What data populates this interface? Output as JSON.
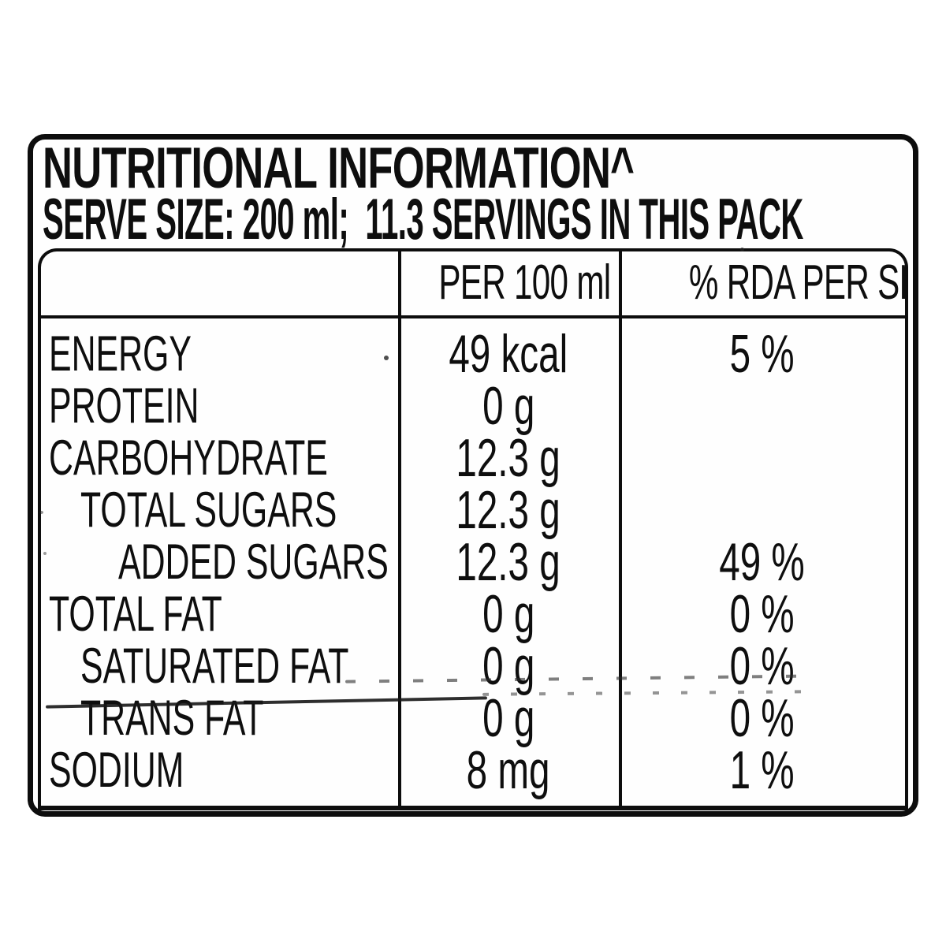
{
  "label": {
    "title": "NUTRITIONAL INFORMATION^",
    "serve_line": "SERVE SIZE: 200 ml;  11.3 SERVINGS IN THIS PACK"
  },
  "table": {
    "columns": [
      "",
      "PER 100 ml",
      "% RDA PER SERVE"
    ],
    "rows": [
      {
        "nutrient": "ENERGY",
        "indent": 0,
        "per_100ml": "49 kcal",
        "rda_per_serve": "5 %"
      },
      {
        "nutrient": "PROTEIN",
        "indent": 0,
        "per_100ml": "0 g",
        "rda_per_serve": ""
      },
      {
        "nutrient": "CARBOHYDRATE",
        "indent": 0,
        "per_100ml": "12.3 g",
        "rda_per_serve": ""
      },
      {
        "nutrient": "TOTAL SUGARS",
        "indent": 1,
        "per_100ml": "12.3 g",
        "rda_per_serve": ""
      },
      {
        "nutrient": "ADDED SUGARS",
        "indent": 2,
        "per_100ml": "12.3 g",
        "rda_per_serve": "49 %"
      },
      {
        "nutrient": "TOTAL FAT",
        "indent": 0,
        "per_100ml": "0 g",
        "rda_per_serve": "0 %"
      },
      {
        "nutrient": "SATURATED FAT",
        "indent": 1,
        "per_100ml": "0 g",
        "rda_per_serve": "0 %"
      },
      {
        "nutrient": "TRANS FAT",
        "indent": 1,
        "per_100ml": "0 g",
        "rda_per_serve": "0 %"
      },
      {
        "nutrient": "SODIUM",
        "indent": 0,
        "per_100ml": "8 mg",
        "rda_per_serve": "1 %"
      }
    ]
  },
  "colors": {
    "ink": "#0d0d0d",
    "paper": "#fefefe"
  }
}
